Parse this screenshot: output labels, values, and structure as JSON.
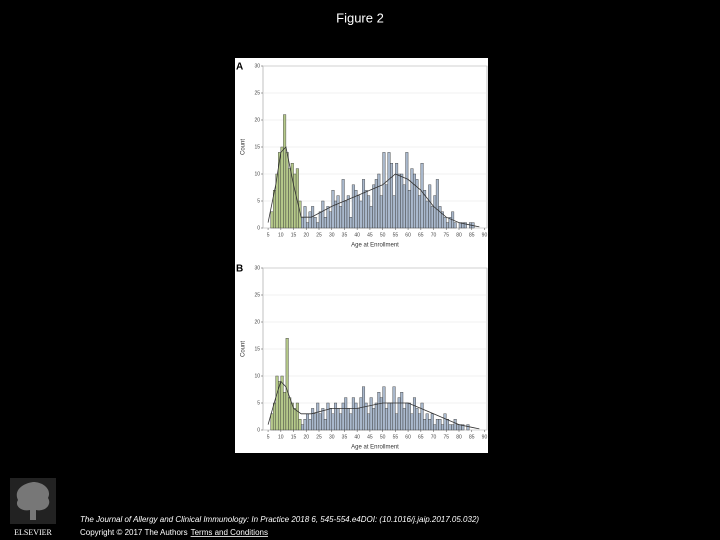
{
  "slide": {
    "title": "Figure 2",
    "citation": "The Journal of Allergy and Clinical Immunology: In Practice 2018 6, 545-554.e4DOI: (10.1016/j.jaip.2017.05.032)",
    "copyright": "Copyright © 2017 The Authors",
    "link": "Terms and Conditions",
    "logo_text": "ELSEVIER"
  },
  "chart_data": [
    {
      "type": "histogram",
      "panel_label": "A",
      "x_label": "Age at Enrollment",
      "y_label": "Count",
      "xlim": [
        3,
        91
      ],
      "ylim": [
        0,
        30
      ],
      "xticks": [
        5,
        10,
        15,
        20,
        25,
        30,
        35,
        40,
        45,
        50,
        55,
        60,
        65,
        70,
        75,
        80,
        85,
        90
      ],
      "yticks": [
        0,
        5,
        10,
        15,
        20,
        25,
        30
      ],
      "grid": true,
      "series": [
        {
          "color": "#b5c98a",
          "bins": [
            6,
            7,
            8,
            9,
            10,
            11,
            12,
            13,
            14,
            15,
            16,
            17,
            18
          ],
          "values": [
            3,
            7,
            10,
            14,
            15,
            21,
            14,
            11,
            12,
            10,
            11,
            5
          ]
        },
        {
          "color": "#a9b8cc",
          "bins": [
            18,
            19,
            20,
            21,
            22,
            23,
            24,
            25,
            26,
            27,
            28,
            29,
            30,
            31,
            32,
            33,
            34,
            35,
            36,
            37,
            38,
            39,
            40,
            41,
            42,
            43,
            44,
            45,
            46,
            47,
            48,
            49,
            50,
            51,
            52,
            53,
            54,
            55,
            56,
            57,
            58,
            59,
            60,
            61,
            62,
            63,
            64,
            65,
            66,
            67,
            68,
            69,
            70,
            71,
            72,
            73,
            74,
            75,
            76,
            77,
            78,
            79,
            80,
            81,
            82,
            83,
            84,
            85,
            86,
            87
          ],
          "values": [
            2,
            4,
            1,
            3,
            4,
            2,
            1,
            3,
            5,
            2,
            4,
            3,
            7,
            5,
            6,
            4,
            9,
            5,
            6,
            2,
            8,
            7,
            6,
            5,
            9,
            7,
            6,
            4,
            8,
            9,
            10,
            6,
            14,
            8,
            14,
            12,
            6,
            12,
            10,
            10,
            8,
            14,
            7,
            11,
            10,
            9,
            6,
            12,
            7,
            5,
            8,
            4,
            6,
            9,
            4,
            3,
            2,
            1,
            2,
            3,
            1,
            0,
            1,
            1,
            1,
            0,
            1,
            1,
            0
          ]
        }
      ],
      "curve": {
        "color": "#333333",
        "x": [
          5,
          8,
          10,
          12,
          15,
          18,
          22,
          30,
          40,
          50,
          55,
          60,
          65,
          70,
          75,
          80,
          85,
          88
        ],
        "values": [
          1,
          8,
          14,
          15,
          8,
          2,
          2,
          4,
          6,
          8,
          10,
          9,
          7,
          4,
          2,
          1,
          0.5,
          0.2
        ]
      }
    },
    {
      "type": "histogram",
      "panel_label": "B",
      "x_label": "Age at Enrollment",
      "y_label": "Count",
      "xlim": [
        3,
        91
      ],
      "ylim": [
        0,
        30
      ],
      "xticks": [
        5,
        10,
        15,
        20,
        25,
        30,
        35,
        40,
        45,
        50,
        55,
        60,
        65,
        70,
        75,
        80,
        85,
        90
      ],
      "yticks": [
        0,
        5,
        10,
        15,
        20,
        25,
        30
      ],
      "grid": true,
      "series": [
        {
          "color": "#b5c98a",
          "bins": [
            6,
            7,
            8,
            9,
            10,
            11,
            12,
            13,
            14,
            15,
            16,
            17,
            18
          ],
          "values": [
            3,
            5,
            10,
            9,
            10,
            7,
            17,
            6,
            5,
            4,
            5,
            2
          ]
        },
        {
          "color": "#a9b8cc",
          "bins": [
            18,
            19,
            20,
            21,
            22,
            23,
            24,
            25,
            26,
            27,
            28,
            29,
            30,
            31,
            32,
            33,
            34,
            35,
            36,
            37,
            38,
            39,
            40,
            41,
            42,
            43,
            44,
            45,
            46,
            47,
            48,
            49,
            50,
            51,
            52,
            53,
            54,
            55,
            56,
            57,
            58,
            59,
            60,
            61,
            62,
            63,
            64,
            65,
            66,
            67,
            68,
            69,
            70,
            71,
            72,
            73,
            74,
            75,
            76,
            77,
            78,
            79,
            80,
            81,
            82,
            83,
            84,
            85,
            86,
            87
          ],
          "values": [
            1,
            2,
            3,
            2,
            4,
            3,
            5,
            3,
            4,
            2,
            5,
            4,
            3,
            5,
            4,
            3,
            5,
            6,
            4,
            3,
            6,
            5,
            4,
            6,
            8,
            5,
            3,
            6,
            4,
            5,
            7,
            6,
            8,
            4,
            5,
            5,
            8,
            3,
            6,
            7,
            4,
            5,
            5,
            3,
            6,
            4,
            3,
            5,
            2,
            3,
            2,
            3,
            1,
            2,
            2,
            1,
            3,
            2,
            1,
            1,
            2,
            1,
            1,
            1,
            0,
            1,
            0,
            0,
            0
          ]
        }
      ],
      "curve": {
        "color": "#333333",
        "x": [
          5,
          8,
          10,
          12,
          15,
          18,
          22,
          30,
          40,
          50,
          55,
          60,
          65,
          70,
          75,
          80,
          85,
          88
        ],
        "values": [
          1,
          6,
          9,
          8,
          4,
          3,
          3,
          4,
          4,
          5,
          5,
          5,
          4,
          3,
          2,
          1,
          0.5,
          0.2
        ]
      }
    }
  ]
}
